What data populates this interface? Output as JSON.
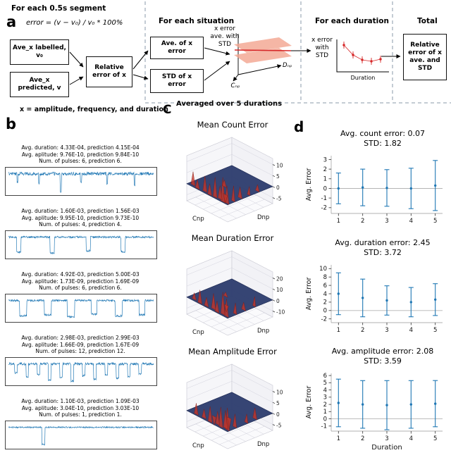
{
  "panel_a": {
    "label": "a",
    "segment_heading": "For each 0.5s segment",
    "formula": "error = (v − v₀) / v₀  * 100%",
    "box_labelled": "Ave_x labelled, v₀",
    "box_predicted": "Ave_x predicted, v",
    "box_relative_error": "Relative error of x",
    "situation_heading": "For each situation",
    "box_ave_error": "Ave. of x error",
    "box_std_error": "STD of x error",
    "surface_caption_line1": "x error",
    "surface_caption_line2": "ave. with",
    "surface_caption_line3": "STD",
    "surface_axis_d": "Dₙₚ",
    "surface_axis_c": "Cₙₚ",
    "duration_heading": "For each duration",
    "duration_caption_line1": "x error",
    "duration_caption_line2": "with",
    "duration_caption_line3": "STD",
    "duration_axis_label": "Duration",
    "total_heading": "Total",
    "box_total": "Relative error of x ave. and STD",
    "footnote": "x = amplitude, frequency, and duration"
  },
  "panel_b": {
    "label": "b",
    "segments": [
      {
        "line1": "Avg. duration: 4.33E-04, prediction 4.15E-04",
        "line2": "Avg. aplitude: 9.76E-10, prediction 9.84E-10",
        "line3": "Num. of pulses: 6, prediction 6."
      },
      {
        "line1": "Avg. duration: 1.60E-03, prediction 1.56E-03",
        "line2": "Avg. aplitude: 9.95E-10, prediction 9.73E-10",
        "line3": "Num. of pulses: 4, prediction 4."
      },
      {
        "line1": "Avg. duration: 4.92E-03, prediction 5.00E-03",
        "line2": "Avg. aplitude: 1.73E-09, prediction 1.69E-09",
        "line3": "Num. of pulses: 6, prediction 6."
      },
      {
        "line1": "Avg. duration: 2.98E-03, prediction 2.99E-03",
        "line2": "Avg. aplitude: 1.66E-09, prediction 1.67E-09",
        "line3": "Num. of pulses: 12, prediction 12."
      },
      {
        "line1": "Avg. duration: 1.10E-03, prediction 1.09E-03",
        "line2": "Avg. aplitude: 3.04E-10, prediction 3.03E-10",
        "line3": "Num. of pulses: 1, prediction 1."
      }
    ]
  },
  "panel_c": {
    "label": "C",
    "heading": "Averaged over 5 durations"
  },
  "panel_d": {
    "label": "d"
  },
  "colors": {
    "series_blue": "#1f77b4",
    "accent_red": "#d62728",
    "surface_navy": "#2e3d6e",
    "salmon": "#f2a48e",
    "divider": "#8899aa"
  },
  "chart_data": [
    {
      "id": "b1",
      "panel": "b",
      "type": "line",
      "color": "#1f77b4",
      "seed": 7,
      "noise": 0.12,
      "pulses": [
        {
          "x": 0.06,
          "w": 0.008,
          "d": 0.5
        },
        {
          "x": 0.21,
          "w": 0.008,
          "d": 0.55
        },
        {
          "x": 0.36,
          "w": 0.01,
          "d": 1.0
        },
        {
          "x": 0.5,
          "w": 0.008,
          "d": 0.45
        },
        {
          "x": 0.68,
          "w": 0.008,
          "d": 0.6
        },
        {
          "x": 0.87,
          "w": 0.008,
          "d": 0.65
        }
      ]
    },
    {
      "id": "b2",
      "panel": "b",
      "type": "line",
      "color": "#1f77b4",
      "seed": 12,
      "noise": 0.07,
      "pulses": [
        {
          "x": 0.07,
          "w": 0.03,
          "d": 0.85
        },
        {
          "x": 0.3,
          "w": 0.03,
          "d": 0.9
        },
        {
          "x": 0.55,
          "w": 0.03,
          "d": 0.75
        },
        {
          "x": 0.79,
          "w": 0.03,
          "d": 0.8
        }
      ]
    },
    {
      "id": "b3",
      "panel": "b",
      "type": "line",
      "color": "#1f77b4",
      "seed": 23,
      "noise": 0.07,
      "pulses": [
        {
          "x": 0.1,
          "w": 0.05,
          "d": 0.85
        },
        {
          "x": 0.27,
          "w": 0.05,
          "d": 0.8
        },
        {
          "x": 0.43,
          "w": 0.05,
          "d": 0.9
        },
        {
          "x": 0.59,
          "w": 0.04,
          "d": 0.75
        },
        {
          "x": 0.76,
          "w": 0.05,
          "d": 0.85
        },
        {
          "x": 0.92,
          "w": 0.04,
          "d": 0.8
        }
      ]
    },
    {
      "id": "b4",
      "panel": "b",
      "type": "line",
      "color": "#1f77b4",
      "seed": 31,
      "noise": 0.09,
      "pulses": [
        {
          "x": 0.05,
          "w": 0.018,
          "d": 0.5
        },
        {
          "x": 0.128,
          "w": 0.018,
          "d": 0.7
        },
        {
          "x": 0.206,
          "w": 0.018,
          "d": 0.6
        },
        {
          "x": 0.284,
          "w": 0.018,
          "d": 0.9
        },
        {
          "x": 0.362,
          "w": 0.018,
          "d": 0.75
        },
        {
          "x": 0.44,
          "w": 0.018,
          "d": 0.95
        },
        {
          "x": 0.518,
          "w": 0.018,
          "d": 0.65
        },
        {
          "x": 0.596,
          "w": 0.018,
          "d": 0.85
        },
        {
          "x": 0.674,
          "w": 0.018,
          "d": 0.6
        },
        {
          "x": 0.752,
          "w": 0.018,
          "d": 0.8
        },
        {
          "x": 0.83,
          "w": 0.018,
          "d": 0.7
        },
        {
          "x": 0.908,
          "w": 0.018,
          "d": 0.55
        }
      ]
    },
    {
      "id": "b5",
      "panel": "b",
      "type": "line",
      "color": "#1f77b4",
      "seed": 44,
      "noise": 0.05,
      "pulses": [
        {
          "x": 0.24,
          "w": 0.02,
          "d": 0.95
        }
      ]
    },
    {
      "id": "c1",
      "panel": "c",
      "type": "heatmap",
      "projection": "3d",
      "title": "Mean Count Error",
      "xlabel": "Cnp",
      "ylabel": "Dnp",
      "zticks": [
        10,
        5,
        0,
        -5
      ],
      "spikes": [
        {
          "u": 0.05,
          "v": 0.03,
          "h": 8
        },
        {
          "u": 0.14,
          "v": 0.02,
          "h": 11
        },
        {
          "u": 0.24,
          "v": 0.05,
          "h": 6
        },
        {
          "u": 0.34,
          "v": 0.03,
          "h": 9
        },
        {
          "u": 0.46,
          "v": 0.02,
          "h": 5
        },
        {
          "u": 0.6,
          "v": 0.04,
          "h": 7
        },
        {
          "u": 0.76,
          "v": 0.02,
          "h": 4
        },
        {
          "u": 0.9,
          "v": 0.05,
          "h": 6
        },
        {
          "u": 0.03,
          "v": 0.16,
          "h": 7
        },
        {
          "u": 0.05,
          "v": 0.32,
          "h": 5
        },
        {
          "u": 0.02,
          "v": 0.5,
          "h": 4
        },
        {
          "u": 0.04,
          "v": 0.7,
          "h": 3
        },
        {
          "u": 0.3,
          "v": 0.22,
          "h": -4
        },
        {
          "u": 0.52,
          "v": 0.4,
          "h": 3
        }
      ]
    },
    {
      "id": "c2",
      "panel": "c",
      "type": "heatmap",
      "projection": "3d",
      "title": "Mean Duration Error",
      "xlabel": "Cnp",
      "ylabel": "Dnp",
      "zticks": [
        20,
        10,
        0,
        -10
      ],
      "spikes": [
        {
          "u": 0.06,
          "v": 0.03,
          "h": 16
        },
        {
          "u": 0.16,
          "v": 0.04,
          "h": 20
        },
        {
          "u": 0.28,
          "v": 0.02,
          "h": 10
        },
        {
          "u": 0.4,
          "v": 0.05,
          "h": 14
        },
        {
          "u": 0.55,
          "v": 0.03,
          "h": 8
        },
        {
          "u": 0.7,
          "v": 0.02,
          "h": 12
        },
        {
          "u": 0.86,
          "v": 0.04,
          "h": 6
        },
        {
          "u": 0.03,
          "v": 0.2,
          "h": 10
        },
        {
          "u": 0.05,
          "v": 0.4,
          "h": 7
        },
        {
          "u": 0.02,
          "v": 0.62,
          "h": 9
        },
        {
          "u": 0.36,
          "v": 0.3,
          "h": -6
        },
        {
          "u": 0.6,
          "v": 0.5,
          "h": 4
        }
      ]
    },
    {
      "id": "c3",
      "panel": "c",
      "type": "heatmap",
      "projection": "3d",
      "title": "Mean Amplitude Error",
      "xlabel": "Cnp",
      "ylabel": "Dnp",
      "zticks": [
        10,
        5,
        0,
        -5
      ],
      "spikes": [
        {
          "u": 0.05,
          "v": 0.04,
          "h": 10
        },
        {
          "u": 0.12,
          "v": 0.06,
          "h": 8
        },
        {
          "u": 0.2,
          "v": 0.03,
          "h": 9
        },
        {
          "u": 0.3,
          "v": 0.05,
          "h": 6
        },
        {
          "u": 0.45,
          "v": 0.02,
          "h": 7
        },
        {
          "u": 0.62,
          "v": 0.04,
          "h": 4
        },
        {
          "u": 0.8,
          "v": 0.03,
          "h": 5
        },
        {
          "u": 0.04,
          "v": 0.2,
          "h": 6
        },
        {
          "u": 0.03,
          "v": 0.45,
          "h": 4
        },
        {
          "u": 0.05,
          "v": 0.65,
          "h": 5
        },
        {
          "u": 0.35,
          "v": 0.35,
          "h": -5
        },
        {
          "u": 0.55,
          "v": 0.2,
          "h": -4
        }
      ]
    },
    {
      "id": "d1",
      "panel": "d",
      "type": "scatter",
      "error_bars": true,
      "title": "Avg. count error: 0.07",
      "subtitle": "STD: 1.82",
      "ylabel": "Avg. Error",
      "xlabel": "",
      "x": [
        1,
        2,
        3,
        4,
        5
      ],
      "y": [
        0.0,
        0.1,
        0.05,
        0.0,
        0.3
      ],
      "yerr": [
        1.6,
        1.9,
        1.9,
        2.1,
        2.6
      ],
      "yticks": [
        3,
        2,
        1,
        0,
        -1,
        -2
      ],
      "ylim": [
        -2.6,
        3.4
      ]
    },
    {
      "id": "d2",
      "panel": "d",
      "type": "scatter",
      "error_bars": true,
      "title": "Avg. duration error: 2.45",
      "subtitle": "STD: 3.72",
      "ylabel": "Avg. Error",
      "xlabel": "",
      "x": [
        1,
        2,
        3,
        4,
        5
      ],
      "y": [
        4.0,
        3.0,
        2.4,
        2.0,
        2.6
      ],
      "yerr": [
        5.0,
        4.5,
        3.5,
        3.5,
        3.8
      ],
      "yticks": [
        10,
        8,
        6,
        4,
        2,
        0,
        -2
      ],
      "ylim": [
        -2.9,
        10.9
      ]
    },
    {
      "id": "d3",
      "panel": "d",
      "type": "scatter",
      "error_bars": true,
      "title": "Avg. amplitude error: 2.08",
      "subtitle": "STD: 3.59",
      "ylabel": "Avg. Error",
      "xlabel": "Duration",
      "x": [
        1,
        2,
        3,
        4,
        5
      ],
      "y": [
        2.2,
        2.0,
        1.9,
        2.0,
        2.1
      ],
      "yerr": [
        3.3,
        3.3,
        3.4,
        3.3,
        3.2
      ],
      "yticks": [
        6,
        5,
        4,
        3,
        2,
        1,
        0,
        -1
      ],
      "ylim": [
        -1.7,
        6.3
      ]
    }
  ]
}
